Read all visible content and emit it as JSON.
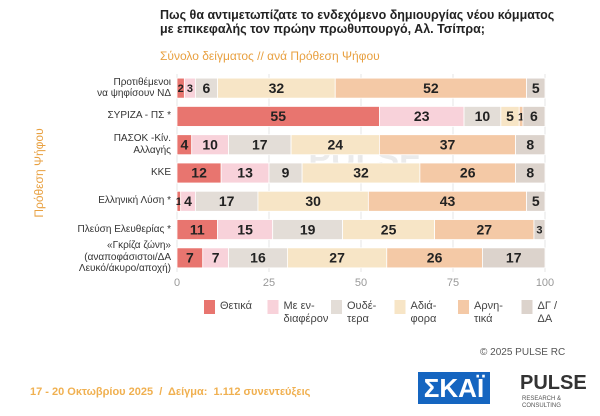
{
  "chart_data": {
    "type": "stacked-barh",
    "title": "Πως θα αντιμετωπίζατε το ενδεχόμενο δημιουργίας νέου κόμματος\nμε επικεφαλής τον πρώην πρωθυπουργό, Αλ. Τσίπρα;",
    "subtitle": "Σύνολο δείγματος // ανά Πρόθεση Ψήφου",
    "y_label": "Πρόθεση Ψήφου",
    "watermark": "PULSE",
    "categories": [
      "Προτιθέμενοι\nνα ψηφίσουν ΝΔ",
      "ΣΥΡΙΖΑ - ΠΣ *",
      "ΠΑΣΟΚ -Κίν.\nΑλλαγής",
      "ΚΚΕ",
      "Ελληνική Λύση *",
      "Πλεύση Ελευθερίας *",
      "«Γκρίζα ζώνη»\n(αναποφάσιστοι/ΔΑ\nΛευκό/άκυρο/αποχή)"
    ],
    "series": [
      {
        "name": "Θετικά",
        "color": "#e8756f",
        "values": [
          2,
          55,
          4,
          12,
          1,
          11,
          7
        ]
      },
      {
        "name": "Με εν-\nδιαφέρον",
        "color": "#f8d2da",
        "values": [
          3,
          23,
          10,
          13,
          4,
          15,
          7
        ]
      },
      {
        "name": "Ουδέ-\nτερα",
        "color": "#e3ddd7",
        "values": [
          6,
          10,
          17,
          9,
          17,
          19,
          16
        ]
      },
      {
        "name": "Αδιά-\nφορα",
        "color": "#f7e5c6",
        "values": [
          32,
          5,
          24,
          32,
          30,
          25,
          27
        ]
      },
      {
        "name": "Αρνη-\nτικά",
        "color": "#f4c9a6",
        "values": [
          52,
          1,
          37,
          26,
          43,
          27,
          26
        ]
      },
      {
        "name": "ΔΓ /\nΔΑ",
        "color": "#dcd3cc",
        "values": [
          5,
          6,
          8,
          8,
          5,
          3,
          17
        ]
      }
    ],
    "xlim": [
      0,
      100
    ],
    "xticks": [
      0,
      25,
      50,
      75,
      100
    ],
    "grid": true,
    "copyright": "© 2025 PULSE RC",
    "footer": "17 - 20 Οκτωβρίου 2025  /  Δείγμα:  1.112 συνεντεύξεις",
    "logos": {
      "skai": "ΣΚΑΪ",
      "pulse": "PULSE",
      "pulse_sub": "RESEARCH & CONSULTING"
    }
  }
}
